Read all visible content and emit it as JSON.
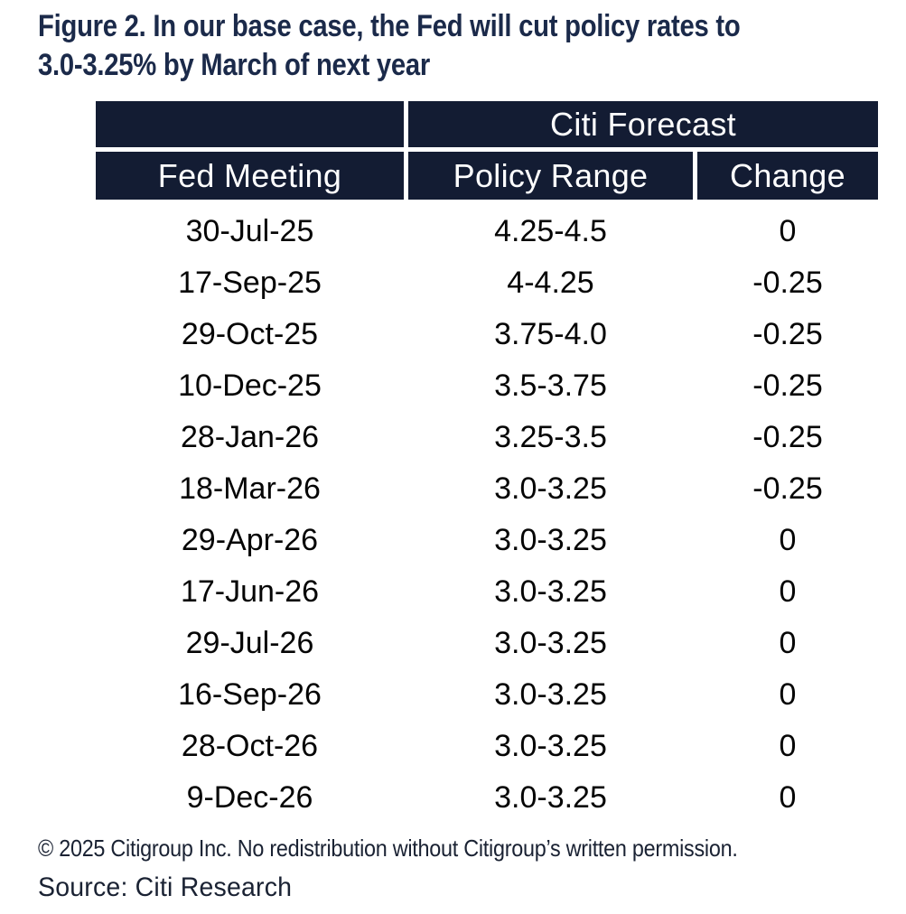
{
  "chart_data": {
    "type": "table",
    "title": "Figure 2. In our base case, the Fed will cut policy rates to 3.0-3.25% by March of next year",
    "title_line1": "Figure 2. In our base case, the Fed will cut policy rates to",
    "title_line2": "3.0-3.25% by March of next year",
    "group_header": "Citi Forecast",
    "group_header_spans": [
      "Policy Range",
      "Change"
    ],
    "columns": [
      "Fed Meeting",
      "Policy Range",
      "Change"
    ],
    "rows": [
      [
        "30-Jul-25",
        "4.25-4.5",
        "0"
      ],
      [
        "17-Sep-25",
        "4-4.25",
        "-0.25"
      ],
      [
        "29-Oct-25",
        "3.75-4.0",
        "-0.25"
      ],
      [
        "10-Dec-25",
        "3.5-3.75",
        "-0.25"
      ],
      [
        "28-Jan-26",
        "3.25-3.5",
        "-0.25"
      ],
      [
        "18-Mar-26",
        "3.0-3.25",
        "-0.25"
      ],
      [
        "29-Apr-26",
        "3.0-3.25",
        "0"
      ],
      [
        "17-Jun-26",
        "3.0-3.25",
        "0"
      ],
      [
        "29-Jul-26",
        "3.0-3.25",
        "0"
      ],
      [
        "16-Sep-26",
        "3.0-3.25",
        "0"
      ],
      [
        "28-Oct-26",
        "3.0-3.25",
        "0"
      ],
      [
        "9-Dec-26",
        "3.0-3.25",
        "0"
      ]
    ]
  },
  "footer": {
    "copyright": "© 2025 Citigroup Inc. No redistribution without Citigroup’s written permission.",
    "source": "Source: Citi Research"
  },
  "colors": {
    "header_background": "#131c33",
    "header_text": "#ffffff",
    "title_text": "#1b2a4a",
    "body_text": "#050505",
    "footer_text": "#1a2233"
  }
}
